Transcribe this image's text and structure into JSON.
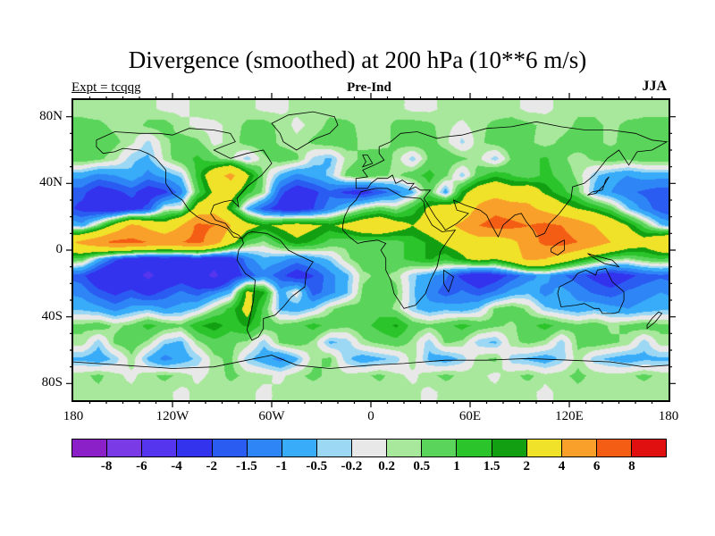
{
  "chart_data": {
    "type": "heatmap",
    "title": "Divergence (smoothed) at 200 hPa (10**6 m/s)",
    "annotations": {
      "left": "Expt = tcqqg",
      "center": "Pre-Ind",
      "right": "JJA"
    },
    "x_axis": {
      "ticks": [
        {
          "label": "180",
          "lon": -180
        },
        {
          "label": "120W",
          "lon": -120
        },
        {
          "label": "60W",
          "lon": -60
        },
        {
          "label": "0",
          "lon": 0
        },
        {
          "label": "60E",
          "lon": 60
        },
        {
          "label": "120E",
          "lon": 120
        },
        {
          "label": "180",
          "lon": 180
        }
      ]
    },
    "y_axis": {
      "ticks": [
        {
          "label": "80N",
          "lat": 80
        },
        {
          "label": "40N",
          "lat": 40
        },
        {
          "label": "0",
          "lat": 0
        },
        {
          "label": "40S",
          "lat": -40
        },
        {
          "label": "80S",
          "lat": -80
        }
      ]
    },
    "lon_range": [
      -180,
      180
    ],
    "lat_range": [
      -90,
      90
    ],
    "colorbar": {
      "boundaries": [
        -8,
        -6,
        -4,
        -2,
        -1.5,
        -1,
        -0.5,
        -0.2,
        0.2,
        0.5,
        1,
        1.5,
        2,
        4,
        6,
        8
      ],
      "labels": [
        "-8",
        "-6",
        "-4",
        "-2",
        "-1.5",
        "-1",
        "-0.5",
        "-0.2",
        "0.2",
        "0.5",
        "1",
        "1.5",
        "2",
        "4",
        "6",
        "8"
      ],
      "colors": [
        "#8b1fc8",
        "#7a3be6",
        "#5535ee",
        "#3333ee",
        "#2a5cf2",
        "#2e86f6",
        "#38acf8",
        "#9cd8f4",
        "#e8e8e8",
        "#a8e89c",
        "#5ad45a",
        "#2bc42b",
        "#12a012",
        "#f0e228",
        "#f9a02a",
        "#f45d14",
        "#e01010"
      ]
    },
    "grid": {
      "lat_start": 85,
      "lat_step": -10,
      "lon_start": -175,
      "lon_step": 10,
      "values": [
        [
          0.4,
          0.3,
          0.3,
          0.4,
          0.3,
          0.1,
          0.1,
          0.3,
          0.4,
          0.4,
          0.3,
          0.1,
          0.1,
          0.3,
          0.4,
          0.4,
          0.3,
          0.3,
          0.4,
          0.3,
          0.1,
          0.1,
          0.3,
          0.4,
          0.4,
          0.3,
          0.3,
          0.1,
          0.1,
          0.3,
          0.4,
          0.4,
          0.3,
          0.3,
          0.4,
          0.4
        ],
        [
          0.6,
          0.6,
          0.4,
          0.3,
          0.6,
          0.7,
          0.3,
          0.1,
          0.1,
          0.3,
          0.6,
          0.7,
          0.4,
          0.1,
          0.3,
          0.6,
          0.6,
          0.4,
          0.3,
          0.6,
          0.7,
          0.6,
          0.3,
          0.1,
          0.4,
          0.6,
          0.7,
          0.6,
          0.4,
          0.3,
          0.6,
          0.6,
          0.4,
          0.6,
          0.6,
          0.6
        ],
        [
          0.7,
          0.8,
          0.6,
          0.3,
          -0.3,
          0.4,
          0.7,
          0.6,
          0.1,
          0.3,
          0.7,
          0.8,
          0.4,
          0.3,
          0.6,
          0.8,
          0.7,
          0.4,
          0.3,
          0.6,
          0.8,
          0.7,
          0.3,
          -0.3,
          0.4,
          0.7,
          0.8,
          0.6,
          0.3,
          0.6,
          0.8,
          0.6,
          0.4,
          0.7,
          0.8,
          0.7
        ],
        [
          0.8,
          0.6,
          0.3,
          -0.4,
          -0.6,
          0.3,
          0.8,
          1.1,
          0.6,
          0.3,
          -0.4,
          0.4,
          0.8,
          0.6,
          -0.3,
          -0.6,
          0.3,
          0.6,
          0.8,
          0.4,
          -0.4,
          0.6,
          0.8,
          0.6,
          0.3,
          -0.4,
          0.6,
          0.8,
          1.1,
          0.6,
          0.3,
          0.6,
          0.8,
          0.6,
          0.8,
          0.8
        ],
        [
          -0.8,
          -1.2,
          -1.0,
          -0.6,
          -1.2,
          -0.8,
          -0.4,
          1.2,
          3.0,
          4.6,
          2.2,
          0.4,
          -0.6,
          -1.2,
          -0.8,
          -0.4,
          0.6,
          0.8,
          0.6,
          0.4,
          0.8,
          1.2,
          0.6,
          -0.4,
          0.8,
          1.4,
          1.0,
          0.6,
          1.2,
          0.8,
          0.4,
          -0.4,
          -0.8,
          -1.0,
          -0.8,
          -0.8
        ],
        [
          -1.8,
          -2.5,
          -2.2,
          -1.8,
          -2.5,
          -2.2,
          -1.2,
          0.8,
          2.2,
          2.6,
          1.2,
          0.4,
          -1.8,
          -2.6,
          -2.2,
          -1.6,
          -2.2,
          -2.4,
          -1.8,
          -1.2,
          -0.6,
          0.8,
          -0.8,
          1.6,
          2.8,
          3.2,
          2.6,
          3.0,
          1.8,
          1.2,
          0.6,
          -0.6,
          -1.0,
          -1.4,
          -1.6,
          -1.8
        ],
        [
          -2.2,
          -2.6,
          -2.8,
          -2.4,
          -1.8,
          0.1,
          0.1,
          2.6,
          3.2,
          1.6,
          -0.6,
          -1.8,
          -2.4,
          -2.6,
          -2.0,
          -1.2,
          -0.4,
          0.4,
          0.8,
          0.4,
          1.2,
          2.2,
          3.0,
          2.4,
          4.5,
          5.5,
          5.0,
          4.5,
          3.5,
          2.5,
          2.0,
          1.5,
          0.8,
          -0.4,
          -1.2,
          -1.8
        ],
        [
          -0.8,
          0.6,
          2.5,
          4.5,
          3.5,
          2.5,
          4.0,
          6.5,
          6.0,
          4.0,
          2.5,
          1.8,
          2.2,
          2.6,
          2.2,
          1.8,
          2.4,
          3.0,
          3.4,
          2.6,
          2.0,
          2.6,
          3.4,
          4.5,
          6.0,
          6.8,
          6.5,
          6.0,
          6.5,
          6.0,
          5.0,
          4.0,
          3.0,
          2.0,
          0.8,
          -0.4
        ],
        [
          4.5,
          5.5,
          6.5,
          6.5,
          6.0,
          5.5,
          6.0,
          6.5,
          5.0,
          2.5,
          0.8,
          0.4,
          1.2,
          1.8,
          1.4,
          0.8,
          0.6,
          0.8,
          0.6,
          0.8,
          1.2,
          1.6,
          2.2,
          2.6,
          3.0,
          2.5,
          3.5,
          5.0,
          6.5,
          6.8,
          6.0,
          5.0,
          4.0,
          3.0,
          2.5,
          3.5
        ],
        [
          0.8,
          -0.6,
          -1.8,
          -2.5,
          -2.8,
          -2.5,
          -2.8,
          -2.5,
          -3.0,
          -2.5,
          -1.2,
          -0.6,
          -0.8,
          -1.2,
          -0.8,
          -0.4,
          0.4,
          0.8,
          0.6,
          0.8,
          1.2,
          1.6,
          1.2,
          1.8,
          2.5,
          2.0,
          3.0,
          4.5,
          4.0,
          3.0,
          2.0,
          1.2,
          0.6,
          0.4,
          0.8,
          1.0
        ],
        [
          -1.8,
          -2.8,
          -3.5,
          -3.0,
          -4.5,
          -3.0,
          -2.5,
          -3.0,
          -4.5,
          -2.5,
          -1.8,
          -1.2,
          -1.8,
          -2.5,
          -2.0,
          -1.2,
          -0.6,
          0.4,
          0.6,
          0.4,
          -0.4,
          -0.8,
          -1.4,
          -2.2,
          -2.8,
          -2.4,
          -1.8,
          -1.2,
          -0.8,
          -1.4,
          -1.8,
          -2.2,
          -2.6,
          -2.2,
          -1.8,
          -1.6
        ],
        [
          -1.2,
          -1.8,
          -2.2,
          -1.8,
          -2.4,
          -1.8,
          -1.4,
          -1.8,
          -1.2,
          -0.6,
          2.2,
          1.6,
          -0.8,
          0.1,
          -1.8,
          -1.2,
          -0.6,
          0.6,
          0.8,
          0.6,
          -0.4,
          -1.2,
          -1.8,
          -1.4,
          -1.8,
          -1.4,
          -0.8,
          -0.6,
          -1.2,
          -0.8,
          -1.2,
          -1.6,
          -1.8,
          -1.4,
          -1.2,
          -1.0
        ],
        [
          -0.6,
          -0.8,
          -1.2,
          -0.8,
          -0.6,
          -1.0,
          -0.8,
          -0.4,
          0.4,
          1.2,
          2.4,
          0.8,
          -0.6,
          -0.8,
          -0.4,
          0.4,
          0.8,
          0.6,
          0.8,
          0.4,
          -0.4,
          -0.8,
          -0.6,
          -0.8,
          -0.4,
          0.6,
          0.8,
          0.4,
          -0.4,
          -0.6,
          -0.8,
          -0.6,
          -0.8,
          -1.0,
          -0.8,
          -0.6
        ],
        [
          0.6,
          0.8,
          0.4,
          0.6,
          1.2,
          0.8,
          0.6,
          1.4,
          1.8,
          1.2,
          1.6,
          0.8,
          0.6,
          0.8,
          1.2,
          0.8,
          0.6,
          0.8,
          1.2,
          1.6,
          0.8,
          0.6,
          0.8,
          1.2,
          0.8,
          0.6,
          0.4,
          0.8,
          1.2,
          0.8,
          0.6,
          0.8,
          0.4,
          0.6,
          0.8,
          0.6
        ],
        [
          0.4,
          -0.4,
          0.6,
          0.8,
          0.4,
          -0.4,
          -0.6,
          0.4,
          0.8,
          0.6,
          0.4,
          -0.4,
          0.6,
          0.8,
          0.4,
          -0.6,
          -0.4,
          0.4,
          0.6,
          0.8,
          0.4,
          -0.4,
          0.6,
          0.4,
          -0.4,
          -0.6,
          0.4,
          0.6,
          0.4,
          -0.4,
          0.6,
          0.8,
          0.6,
          0.4,
          -0.4,
          0.4
        ],
        [
          -0.6,
          -0.8,
          -0.4,
          0.4,
          -0.6,
          -1.2,
          -0.8,
          -0.4,
          0.4,
          0.6,
          -0.4,
          -0.8,
          -1.2,
          -0.6,
          0.4,
          0.6,
          -0.4,
          -0.8,
          -0.6,
          -0.4,
          0.4,
          -0.6,
          -0.8,
          -0.4,
          0.4,
          0.6,
          -0.4,
          -0.6,
          -0.8,
          -0.4,
          0.4,
          -0.4,
          -0.6,
          -0.8,
          -0.6,
          -0.6
        ],
        [
          0.4,
          0.6,
          0.3,
          0.1,
          0.4,
          0.6,
          0.4,
          0.1,
          0.3,
          0.6,
          0.4,
          0.3,
          0.1,
          0.4,
          0.6,
          0.4,
          0.3,
          0.4,
          0.6,
          0.3,
          0.1,
          0.4,
          0.6,
          0.4,
          0.3,
          0.1,
          0.4,
          0.6,
          0.3,
          0.4,
          0.6,
          0.4,
          0.3,
          0.4,
          0.6,
          0.4
        ],
        [
          0.3,
          0.4,
          0.3,
          0.3,
          0.4,
          0.3,
          0.1,
          0.3,
          0.4,
          0.3,
          0.3,
          0.1,
          0.3,
          0.4,
          0.3,
          0.3,
          0.4,
          0.3,
          0.3,
          0.4,
          0.3,
          0.1,
          0.3,
          0.4,
          0.3,
          0.3,
          0.4,
          0.3,
          0.1,
          0.3,
          0.4,
          0.3,
          0.3,
          0.4,
          0.3,
          0.3
        ]
      ]
    }
  }
}
